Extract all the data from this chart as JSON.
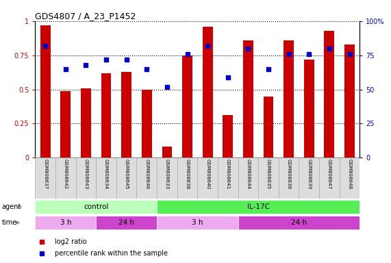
{
  "title": "GDS4807 / A_23_P1452",
  "samples": [
    "GSM808637",
    "GSM808642",
    "GSM808643",
    "GSM808634",
    "GSM808645",
    "GSM808646",
    "GSM808633",
    "GSM808638",
    "GSM808640",
    "GSM808641",
    "GSM808644",
    "GSM808635",
    "GSM808636",
    "GSM808639",
    "GSM808647",
    "GSM808648"
  ],
  "log2_ratio": [
    0.97,
    0.49,
    0.51,
    0.62,
    0.63,
    0.5,
    0.08,
    0.75,
    0.96,
    0.31,
    0.86,
    0.45,
    0.86,
    0.72,
    0.93,
    0.83
  ],
  "percentile": [
    82,
    65,
    68,
    72,
    72,
    65,
    52,
    76,
    82,
    59,
    80,
    65,
    76,
    76,
    80,
    76
  ],
  "bar_color": "#cc0000",
  "dot_color": "#0000cc",
  "ylim_left": [
    0,
    1.0
  ],
  "ylim_right": [
    0,
    100
  ],
  "yticks_left": [
    0,
    0.25,
    0.5,
    0.75,
    1.0
  ],
  "ytick_labels_left": [
    "0",
    "0.25",
    "0.5",
    "0.75",
    "1"
  ],
  "yticks_right": [
    0,
    25,
    50,
    75,
    100
  ],
  "ytick_labels_right": [
    "0",
    "25",
    "50",
    "75",
    "100%"
  ],
  "groups": [
    {
      "label": "control",
      "color": "#bbffbb",
      "start": 0,
      "end": 6
    },
    {
      "label": "IL-17C",
      "color": "#55ee55",
      "start": 6,
      "end": 16
    }
  ],
  "time_groups": [
    {
      "label": "3 h",
      "color": "#eeaaee",
      "start": 0,
      "end": 3
    },
    {
      "label": "24 h",
      "color": "#cc44cc",
      "start": 3,
      "end": 6
    },
    {
      "label": "3 h",
      "color": "#eeaaee",
      "start": 6,
      "end": 10
    },
    {
      "label": "24 h",
      "color": "#cc44cc",
      "start": 10,
      "end": 16
    }
  ],
  "legend_items": [
    {
      "label": "log2 ratio",
      "color": "#cc0000"
    },
    {
      "label": "percentile rank within the sample",
      "color": "#0000cc"
    }
  ]
}
